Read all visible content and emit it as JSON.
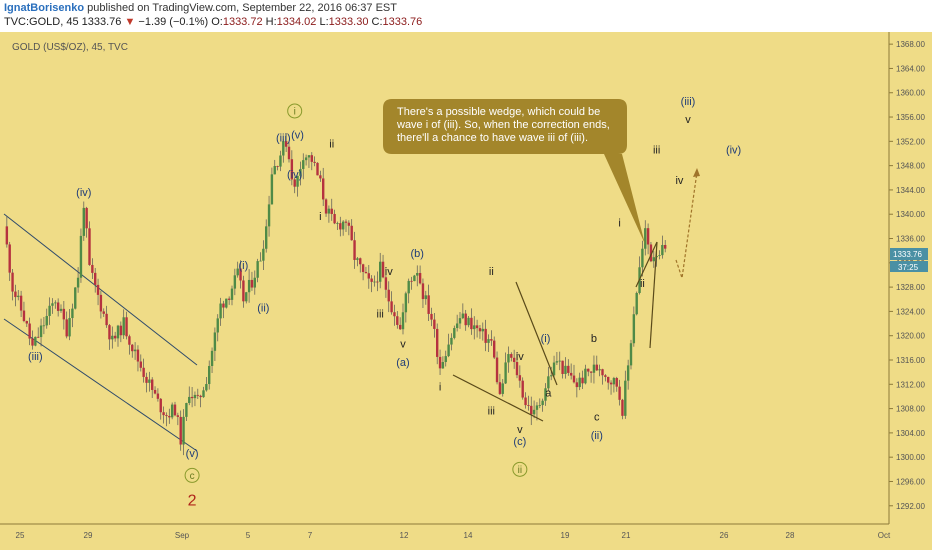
{
  "header": {
    "author": "IgnatBorisenko",
    "published": "published on TradingView.com, September 22, 2016 06:37 EST",
    "symbol": "TVC:GOLD, 45",
    "price": "1333.76",
    "change_arrow": "▼",
    "change": "−1.39 (−0.1%)",
    "ohlc": [
      {
        "label": "O:",
        "value": "1333.72"
      },
      {
        "label": "H:",
        "value": "1334.02"
      },
      {
        "label": "L:",
        "value": "1333.30"
      },
      {
        "label": "C:",
        "value": "1333.76"
      }
    ]
  },
  "colors": {
    "background": "#efdc87",
    "up_candle": "#4f8a47",
    "down_candle": "#b5323f",
    "wick": "#555555",
    "trendline": "#5a4a1a",
    "channel": "#2e4a6b",
    "note_bg": "#a3862b",
    "price_badge": "#4a90a4"
  },
  "chart_data": {
    "type": "candlestick",
    "title": "GOLD (US$/OZ), 45, TVC",
    "x_tick_labels": [
      "25",
      "29",
      "Sep",
      "5",
      "7",
      "12",
      "14",
      "19",
      "21",
      "26",
      "28",
      "Oct"
    ],
    "y_tick_labels": [
      "1368.00",
      "1364.00",
      "1360.00",
      "1356.00",
      "1352.00",
      "1348.00",
      "1344.00",
      "1340.00",
      "1336.00",
      "1332.00",
      "1328.00",
      "1324.00",
      "1320.00",
      "1316.00",
      "1312.00",
      "1308.00",
      "1304.00",
      "1300.00",
      "1296.00",
      "1292.00"
    ],
    "ylim": [
      1289,
      1370
    ],
    "last_price": "1333.76",
    "countdown": "37:25",
    "price_path": [
      [
        0,
        1338
      ],
      [
        1.5,
        1328
      ],
      [
        3.5,
        1323
      ],
      [
        5,
        1318
      ],
      [
        7,
        1322
      ],
      [
        9,
        1326
      ],
      [
        11,
        1321
      ],
      [
        13,
        1330
      ],
      [
        14,
        1342
      ],
      [
        15,
        1331
      ],
      [
        17,
        1325
      ],
      [
        19,
        1319
      ],
      [
        21,
        1322
      ],
      [
        23,
        1317
      ],
      [
        25,
        1313
      ],
      [
        27,
        1309
      ],
      [
        28.5,
        1307
      ],
      [
        30,
        1308
      ],
      [
        31,
        1303
      ],
      [
        32.5,
        1311
      ],
      [
        34,
        1309
      ],
      [
        35.5,
        1313
      ],
      [
        37,
        1320
      ],
      [
        38,
        1325
      ],
      [
        39.5,
        1327
      ],
      [
        41,
        1330
      ],
      [
        42,
        1326
      ],
      [
        43.5,
        1329
      ],
      [
        45,
        1333
      ],
      [
        46,
        1338
      ],
      [
        47,
        1347
      ],
      [
        48.5,
        1350
      ],
      [
        49.5,
        1352
      ],
      [
        51,
        1344
      ],
      [
        52.5,
        1350
      ],
      [
        54,
        1349
      ],
      [
        55.5,
        1345
      ],
      [
        56.5,
        1341
      ],
      [
        58,
        1338
      ],
      [
        60,
        1339
      ],
      [
        61.5,
        1333
      ],
      [
        63,
        1330
      ],
      [
        64.5,
        1328
      ],
      [
        66,
        1331
      ],
      [
        67,
        1327
      ],
      [
        68.5,
        1324
      ],
      [
        69.5,
        1321
      ],
      [
        71,
        1329
      ],
      [
        72.5,
        1331
      ],
      [
        73.5,
        1327
      ],
      [
        75,
        1323
      ],
      [
        76.5,
        1315
      ],
      [
        78,
        1319
      ],
      [
        80,
        1323
      ],
      [
        82,
        1322
      ],
      [
        84,
        1320
      ],
      [
        85.5,
        1319
      ],
      [
        87,
        1310
      ],
      [
        88.5,
        1317
      ],
      [
        90,
        1314
      ],
      [
        91.5,
        1309
      ],
      [
        93,
        1307
      ],
      [
        94,
        1309
      ],
      [
        95.5,
        1313
      ],
      [
        97,
        1316
      ],
      [
        98.5,
        1314
      ],
      [
        100.5,
        1312
      ],
      [
        102.5,
        1314
      ],
      [
        104.5,
        1315
      ],
      [
        106,
        1313
      ],
      [
        107.5,
        1312
      ],
      [
        108.5,
        1308
      ],
      [
        109.5,
        1315
      ],
      [
        110.5,
        1324
      ],
      [
        111.5,
        1331
      ],
      [
        112.5,
        1337
      ],
      [
        113.5,
        1333
      ],
      [
        114.5,
        1334
      ],
      [
        116,
        1333.76
      ]
    ],
    "wave_labels": [
      {
        "text": "(iv)",
        "x": 14,
        "y": 1342,
        "pos": "above",
        "color": "blue"
      },
      {
        "text": "(iii)",
        "x": 5.5,
        "y": 1318,
        "pos": "below",
        "color": "blue"
      },
      {
        "text": "(v)",
        "x": 33,
        "y": 1302,
        "pos": "below",
        "color": "blue"
      },
      {
        "text": "c",
        "x": 33,
        "y": 1297,
        "pos": "circle",
        "color": "green"
      },
      {
        "text": "2",
        "x": 33,
        "y": 1294,
        "pos": "below",
        "color": "red"
      },
      {
        "text": "(i)",
        "x": 42,
        "y": 1330,
        "pos": "above",
        "color": "blue"
      },
      {
        "text": "(ii)",
        "x": 45.5,
        "y": 1324,
        "pos": "at",
        "color": "blue"
      },
      {
        "text": "(iii)",
        "x": 49,
        "y": 1352,
        "pos": "at",
        "color": "blue"
      },
      {
        "text": "(v)",
        "x": 51.5,
        "y": 1352.5,
        "pos": "at",
        "color": "blue"
      },
      {
        "text": "i",
        "x": 51,
        "y": 1357,
        "pos": "circle",
        "color": "green"
      },
      {
        "text": "(iv)",
        "x": 51,
        "y": 1346,
        "pos": "at",
        "color": "blue"
      },
      {
        "text": "ii",
        "x": 57.5,
        "y": 1350,
        "pos": "above",
        "color": "dark"
      },
      {
        "text": "i",
        "x": 55.5,
        "y": 1341,
        "pos": "below",
        "color": "dark"
      },
      {
        "text": "iv",
        "x": 67.5,
        "y": 1329,
        "pos": "above",
        "color": "dark"
      },
      {
        "text": "iii",
        "x": 66,
        "y": 1323,
        "pos": "at",
        "color": "dark"
      },
      {
        "text": "v",
        "x": 70,
        "y": 1320,
        "pos": "below",
        "color": "dark"
      },
      {
        "text": "(a)",
        "x": 70,
        "y": 1317,
        "pos": "below",
        "color": "blue"
      },
      {
        "text": "(b)",
        "x": 72.5,
        "y": 1332,
        "pos": "above",
        "color": "blue"
      },
      {
        "text": "i",
        "x": 76.5,
        "y": 1311,
        "pos": "at",
        "color": "dark"
      },
      {
        "text": "ii",
        "x": 85.5,
        "y": 1329,
        "pos": "above",
        "color": "dark"
      },
      {
        "text": "iii",
        "x": 85.5,
        "y": 1307,
        "pos": "at",
        "color": "dark"
      },
      {
        "text": "iv",
        "x": 90.5,
        "y": 1315,
        "pos": "above",
        "color": "dark"
      },
      {
        "text": "v",
        "x": 90.5,
        "y": 1304,
        "pos": "at",
        "color": "dark"
      },
      {
        "text": "(c)",
        "x": 90.5,
        "y": 1302,
        "pos": "at",
        "color": "blue"
      },
      {
        "text": "ii",
        "x": 90.5,
        "y": 1298,
        "pos": "circle",
        "color": "green"
      },
      {
        "text": "(i)",
        "x": 95,
        "y": 1318,
        "pos": "above",
        "color": "blue"
      },
      {
        "text": "a",
        "x": 95.5,
        "y": 1310,
        "pos": "at",
        "color": "dark"
      },
      {
        "text": "b",
        "x": 103.5,
        "y": 1319,
        "pos": "at",
        "color": "dark"
      },
      {
        "text": "c",
        "x": 104,
        "y": 1306,
        "pos": "at",
        "color": "dark"
      },
      {
        "text": "(ii)",
        "x": 104,
        "y": 1303,
        "pos": "at",
        "color": "blue"
      },
      {
        "text": "i",
        "x": 108,
        "y": 1338,
        "pos": "at",
        "color": "dark"
      },
      {
        "text": "ii",
        "x": 112,
        "y": 1328,
        "pos": "at",
        "color": "dark"
      },
      {
        "text": "iii",
        "x": 114.5,
        "y": 1350,
        "pos": "at",
        "color": "dark"
      },
      {
        "text": "iv",
        "x": 118.5,
        "y": 1345,
        "pos": "at",
        "color": "dark"
      },
      {
        "text": "(iii)",
        "x": 120,
        "y": 1358,
        "pos": "at",
        "color": "blue"
      },
      {
        "text": "v",
        "x": 120,
        "y": 1355,
        "pos": "at",
        "color": "dark"
      },
      {
        "text": "(iv)",
        "x": 128,
        "y": 1350,
        "pos": "at",
        "color": "blue"
      }
    ],
    "annotation": {
      "text": [
        "There's a possible wedge, which could be",
        "wave i of (iii). So, when the correction ends,",
        "there'll a chance to have wave iii of (iii)."
      ]
    }
  }
}
